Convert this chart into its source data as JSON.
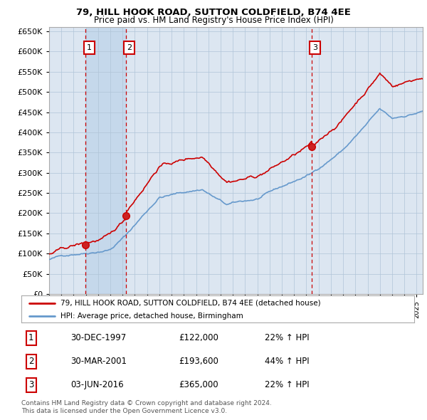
{
  "title": "79, HILL HOOK ROAD, SUTTON COLDFIELD, B74 4EE",
  "subtitle": "Price paid vs. HM Land Registry's House Price Index (HPI)",
  "xlim_start": 1995.0,
  "xlim_end": 2025.5,
  "ylim": [
    0,
    660000
  ],
  "yticks": [
    0,
    50000,
    100000,
    150000,
    200000,
    250000,
    300000,
    350000,
    400000,
    450000,
    500000,
    550000,
    600000,
    650000
  ],
  "ytick_labels": [
    "£0",
    "£50K",
    "£100K",
    "£150K",
    "£200K",
    "£250K",
    "£300K",
    "£350K",
    "£400K",
    "£450K",
    "£500K",
    "£550K",
    "£600K",
    "£650K"
  ],
  "sale_dates": [
    1997.99,
    2001.25,
    2016.42
  ],
  "sale_prices": [
    122000,
    193600,
    365000
  ],
  "sale_labels": [
    "1",
    "2",
    "3"
  ],
  "legend_red": "79, HILL HOOK ROAD, SUTTON COLDFIELD, B74 4EE (detached house)",
  "legend_blue": "HPI: Average price, detached house, Birmingham",
  "table_rows": [
    [
      "1",
      "30-DEC-1997",
      "£122,000",
      "22% ↑ HPI"
    ],
    [
      "2",
      "30-MAR-2001",
      "£193,600",
      "44% ↑ HPI"
    ],
    [
      "3",
      "03-JUN-2016",
      "£365,000",
      "22% ↑ HPI"
    ]
  ],
  "footer": "Contains HM Land Registry data © Crown copyright and database right 2024.\nThis data is licensed under the Open Government Licence v3.0.",
  "red_line_color": "#cc0000",
  "blue_line_color": "#6699cc",
  "vline_color": "#cc0000",
  "plot_bg_color": "#dce6f1",
  "plot_bg_band_color": "#c5d8eb",
  "grid_color": "#b0c4d8",
  "legend_border_color": "#aaaaaa"
}
